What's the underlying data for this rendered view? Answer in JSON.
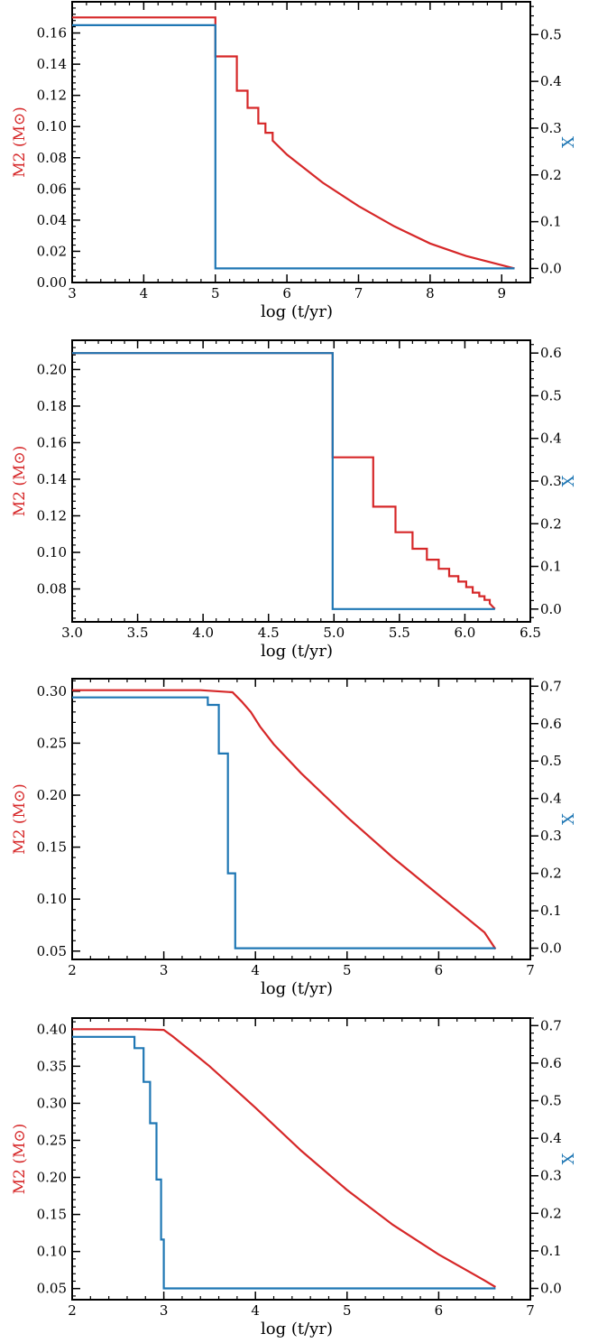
{
  "colors": {
    "m2": "#d62728",
    "x": "#1f77b4",
    "axis": "#000000"
  },
  "chart_data": [
    {
      "type": "line",
      "xlabel": "log (t/yr)",
      "ylabel_left": "M2 (M⊙)",
      "ylabel_right": "X",
      "xlim": [
        3,
        9.4
      ],
      "ylim_left": [
        0,
        0.18
      ],
      "ylim_right": [
        -0.03,
        0.57
      ],
      "xticks": [
        "3",
        "4",
        "5",
        "6",
        "7",
        "8",
        "9"
      ],
      "yticks_left": [
        "0.00",
        "0.02",
        "0.04",
        "0.06",
        "0.08",
        "0.10",
        "0.12",
        "0.14",
        "0.16"
      ],
      "yticks_right": [
        "0.0",
        "0.1",
        "0.2",
        "0.3",
        "0.4",
        "0.5"
      ],
      "series": [
        {
          "axis": "left",
          "x": [
            3,
            5.0,
            5.0,
            5.3,
            5.3,
            5.45,
            5.45,
            5.6,
            5.6,
            5.7,
            5.7,
            5.8,
            5.8,
            6.0,
            6.5,
            7.0,
            7.5,
            8.0,
            8.5,
            9.18
          ],
          "y": [
            0.17,
            0.17,
            0.145,
            0.145,
            0.123,
            0.123,
            0.112,
            0.112,
            0.102,
            0.102,
            0.096,
            0.096,
            0.091,
            0.082,
            0.064,
            0.049,
            0.036,
            0.025,
            0.017,
            0.009
          ]
        },
        {
          "axis": "right",
          "x": [
            3,
            5.0,
            5.0,
            9.18
          ],
          "y": [
            0.52,
            0.52,
            0.0,
            0.0
          ]
        }
      ]
    },
    {
      "type": "line",
      "xlabel": "log (t/yr)",
      "ylabel_left": "M2 (M⊙)",
      "ylabel_right": "X",
      "xlim": [
        3.0,
        6.5
      ],
      "ylim_left": [
        0.062,
        0.216
      ],
      "ylim_right": [
        -0.03,
        0.63
      ],
      "xticks": [
        "3.0",
        "3.5",
        "4.0",
        "4.5",
        "5.0",
        "5.5",
        "6.0",
        "6.5"
      ],
      "yticks_left": [
        "0.08",
        "0.10",
        "0.12",
        "0.14",
        "0.16",
        "0.18",
        "0.20"
      ],
      "yticks_right": [
        "0.0",
        "0.1",
        "0.2",
        "0.3",
        "0.4",
        "0.5",
        "0.6"
      ],
      "series": [
        {
          "axis": "left",
          "x": [
            3.0,
            4.99,
            4.99,
            5.3,
            5.3,
            5.47,
            5.47,
            5.6,
            5.6,
            5.71,
            5.71,
            5.8,
            5.8,
            5.88,
            5.88,
            5.95,
            5.95,
            6.01,
            6.01,
            6.06,
            6.06,
            6.11,
            6.11,
            6.15,
            6.15,
            6.19,
            6.19,
            6.23
          ],
          "y": [
            0.209,
            0.209,
            0.152,
            0.152,
            0.125,
            0.125,
            0.111,
            0.111,
            0.102,
            0.102,
            0.096,
            0.096,
            0.091,
            0.091,
            0.087,
            0.087,
            0.084,
            0.084,
            0.081,
            0.081,
            0.078,
            0.078,
            0.076,
            0.076,
            0.074,
            0.074,
            0.072,
            0.069
          ]
        },
        {
          "axis": "right",
          "x": [
            3.0,
            4.99,
            4.99,
            6.23
          ],
          "y": [
            0.6,
            0.6,
            0.0,
            0.0
          ]
        }
      ]
    },
    {
      "type": "line",
      "xlabel": "log (t/yr)",
      "ylabel_left": "M2 (M⊙)",
      "ylabel_right": "X",
      "xlim": [
        2,
        7
      ],
      "ylim_left": [
        0.042,
        0.312
      ],
      "ylim_right": [
        -0.03,
        0.72
      ],
      "xticks": [
        "2",
        "3",
        "4",
        "5",
        "6",
        "7"
      ],
      "yticks_left": [
        "0.05",
        "0.10",
        "0.15",
        "0.20",
        "0.25",
        "0.30"
      ],
      "yticks_right": [
        "0.0",
        "0.1",
        "0.2",
        "0.3",
        "0.4",
        "0.5",
        "0.6",
        "0.7"
      ],
      "series": [
        {
          "axis": "left",
          "x": [
            2.0,
            3.4,
            3.75,
            3.85,
            3.95,
            4.05,
            4.2,
            4.5,
            5.0,
            5.5,
            6.0,
            6.5,
            6.62
          ],
          "y": [
            0.301,
            0.301,
            0.299,
            0.29,
            0.28,
            0.266,
            0.249,
            0.221,
            0.179,
            0.14,
            0.104,
            0.068,
            0.052
          ]
        },
        {
          "axis": "right",
          "x": [
            2.0,
            3.48,
            3.48,
            3.6,
            3.6,
            3.7,
            3.7,
            3.78,
            3.78,
            6.62
          ],
          "y": [
            0.67,
            0.67,
            0.65,
            0.65,
            0.52,
            0.52,
            0.2,
            0.2,
            0.0,
            0.0
          ]
        }
      ]
    },
    {
      "type": "line",
      "xlabel": "log (t/yr)",
      "ylabel_left": "M2 (M⊙)",
      "ylabel_right": "X",
      "xlim": [
        2,
        7
      ],
      "ylim_left": [
        0.035,
        0.415
      ],
      "ylim_right": [
        -0.03,
        0.72
      ],
      "xticks": [
        "2",
        "3",
        "4",
        "5",
        "6",
        "7"
      ],
      "yticks_left": [
        "0.05",
        "0.10",
        "0.15",
        "0.20",
        "0.25",
        "0.30",
        "0.35",
        "0.40"
      ],
      "yticks_right": [
        "0.0",
        "0.1",
        "0.2",
        "0.3",
        "0.4",
        "0.5",
        "0.6",
        "0.7"
      ],
      "series": [
        {
          "axis": "left",
          "x": [
            2.0,
            2.7,
            3.0,
            3.1,
            3.2,
            3.3,
            3.5,
            4.0,
            4.5,
            5.0,
            5.5,
            6.0,
            6.5,
            6.62
          ],
          "y": [
            0.4,
            0.4,
            0.399,
            0.39,
            0.38,
            0.37,
            0.35,
            0.294,
            0.236,
            0.183,
            0.136,
            0.096,
            0.061,
            0.052
          ]
        },
        {
          "axis": "right",
          "x": [
            2.0,
            2.68,
            2.68,
            2.78,
            2.78,
            2.85,
            2.85,
            2.92,
            2.92,
            2.97,
            2.97,
            3.0,
            3.0,
            6.62
          ],
          "y": [
            0.67,
            0.67,
            0.64,
            0.64,
            0.55,
            0.55,
            0.44,
            0.44,
            0.29,
            0.29,
            0.13,
            0.13,
            0.0,
            0.0
          ]
        }
      ]
    }
  ]
}
